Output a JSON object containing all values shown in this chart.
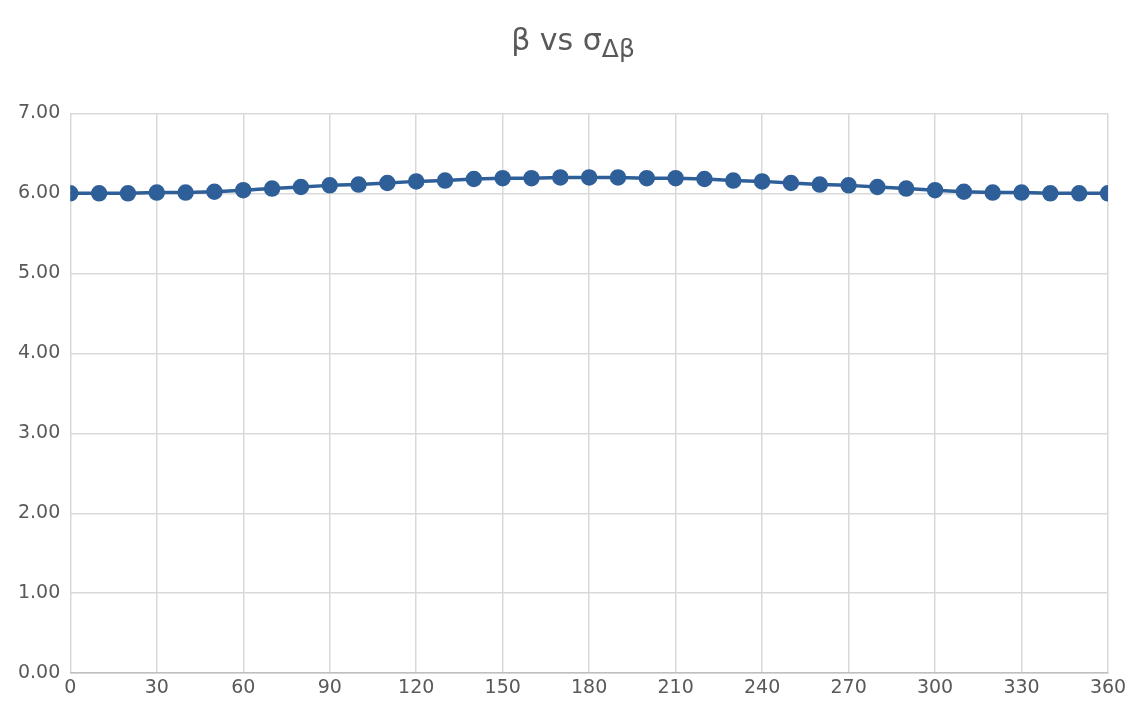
{
  "chart_data": {
    "type": "line",
    "title": "β vs σ$_{Δβ}$",
    "x": [
      0,
      10,
      20,
      30,
      40,
      50,
      60,
      70,
      80,
      90,
      100,
      110,
      120,
      130,
      140,
      150,
      160,
      170,
      180,
      190,
      200,
      210,
      220,
      230,
      240,
      250,
      260,
      270,
      280,
      290,
      300,
      310,
      320,
      330,
      340,
      350,
      360
    ],
    "series": [
      {
        "color": "#2f5f98",
        "values": [
          6.0,
          6.0,
          6.0,
          6.01,
          6.01,
          6.02,
          6.04,
          6.06,
          6.08,
          6.1,
          6.11,
          6.13,
          6.15,
          6.16,
          6.18,
          6.19,
          6.19,
          6.2,
          6.2,
          6.2,
          6.19,
          6.19,
          6.18,
          6.16,
          6.15,
          6.13,
          6.11,
          6.1,
          6.08,
          6.06,
          6.04,
          6.02,
          6.01,
          6.01,
          6.0,
          6.0,
          6.0
        ]
      }
    ],
    "xlim": [
      0,
      360
    ],
    "xticks": [
      0,
      30,
      60,
      90,
      120,
      150,
      180,
      210,
      240,
      270,
      300,
      330,
      360
    ],
    "ylim": [
      0,
      7
    ],
    "yticks": [
      {
        "value": 0,
        "label": "0.00"
      },
      {
        "value": 1,
        "label": "1.00"
      },
      {
        "value": 2,
        "label": "2.00"
      },
      {
        "value": 3,
        "label": "3.00"
      },
      {
        "value": 4,
        "label": "4.00"
      },
      {
        "value": 5,
        "label": "5.00"
      },
      {
        "value": 6,
        "label": "6.00"
      },
      {
        "value": 7,
        "label": "7.00"
      }
    ],
    "grid": true,
    "legend": false,
    "marker": "circle",
    "line_style": "solid"
  }
}
